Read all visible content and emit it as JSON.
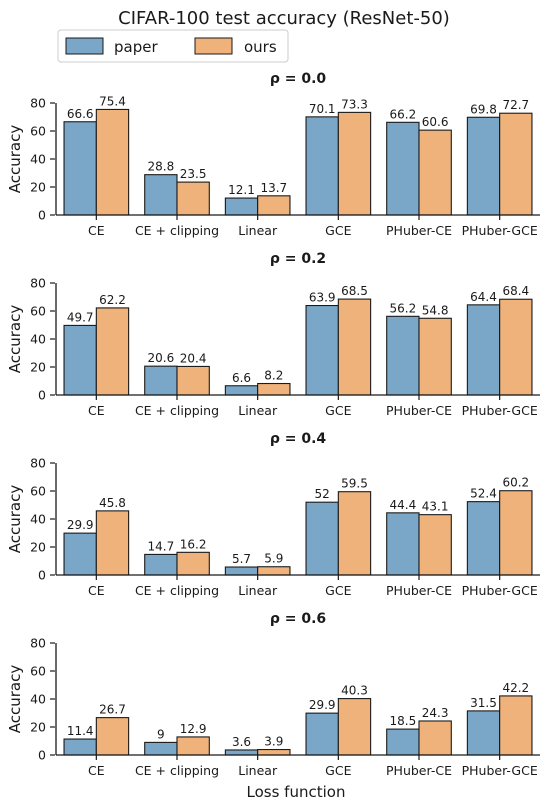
{
  "figure": {
    "title": "CIFAR-100 test accuracy (ResNet-50)",
    "xlabel": "Loss function",
    "ylabel": "Accuracy",
    "colors": {
      "paper": "#7aa6c8",
      "ours": "#efb27a",
      "edge": "#1a1a1a"
    }
  },
  "chart_data": [
    {
      "type": "bar",
      "title": "ρ = 0.0",
      "categories": [
        "CE",
        "CE + clipping",
        "Linear",
        "GCE",
        "PHuber-CE",
        "PHuber-GCE"
      ],
      "series": [
        {
          "name": "paper",
          "values": [
            66.6,
            28.8,
            12.1,
            70.1,
            66.2,
            69.8
          ]
        },
        {
          "name": "ours",
          "values": [
            75.4,
            23.5,
            13.7,
            73.3,
            60.6,
            72.7
          ]
        }
      ],
      "xlabel": "",
      "ylabel": "Accuracy",
      "ylim": [
        0,
        80
      ],
      "yticks": [
        "0",
        "20",
        "40",
        "60",
        "80"
      ],
      "legend": "top-left",
      "grid": false
    },
    {
      "type": "bar",
      "title": "ρ = 0.2",
      "categories": [
        "CE",
        "CE + clipping",
        "Linear",
        "GCE",
        "PHuber-CE",
        "PHuber-GCE"
      ],
      "series": [
        {
          "name": "paper",
          "values": [
            49.7,
            20.6,
            6.6,
            63.9,
            56.2,
            64.4
          ]
        },
        {
          "name": "ours",
          "values": [
            62.2,
            20.4,
            8.2,
            68.5,
            54.8,
            68.4
          ]
        }
      ],
      "xlabel": "",
      "ylabel": "Accuracy",
      "ylim": [
        0,
        80
      ],
      "yticks": [
        "0",
        "20",
        "40",
        "60",
        "80"
      ],
      "grid": false
    },
    {
      "type": "bar",
      "title": "ρ = 0.4",
      "categories": [
        "CE",
        "CE + clipping",
        "Linear",
        "GCE",
        "PHuber-CE",
        "PHuber-GCE"
      ],
      "series": [
        {
          "name": "paper",
          "values": [
            29.9,
            14.7,
            5.7,
            52.0,
            44.4,
            52.4
          ]
        },
        {
          "name": "ours",
          "values": [
            45.8,
            16.2,
            5.9,
            59.5,
            43.1,
            60.2
          ]
        }
      ],
      "xlabel": "",
      "ylabel": "Accuracy",
      "ylim": [
        0,
        80
      ],
      "yticks": [
        "0",
        "20",
        "40",
        "60",
        "80"
      ],
      "grid": false
    },
    {
      "type": "bar",
      "title": "ρ = 0.6",
      "categories": [
        "CE",
        "CE + clipping",
        "Linear",
        "GCE",
        "PHuber-CE",
        "PHuber-GCE"
      ],
      "series": [
        {
          "name": "paper",
          "values": [
            11.4,
            9.0,
            3.6,
            29.9,
            18.5,
            31.5
          ]
        },
        {
          "name": "ours",
          "values": [
            26.7,
            12.9,
            3.9,
            40.3,
            24.3,
            42.2
          ]
        }
      ],
      "xlabel": "Loss function",
      "ylabel": "Accuracy",
      "ylim": [
        0,
        80
      ],
      "yticks": [
        "0",
        "20",
        "40",
        "60",
        "80"
      ],
      "grid": false
    }
  ]
}
